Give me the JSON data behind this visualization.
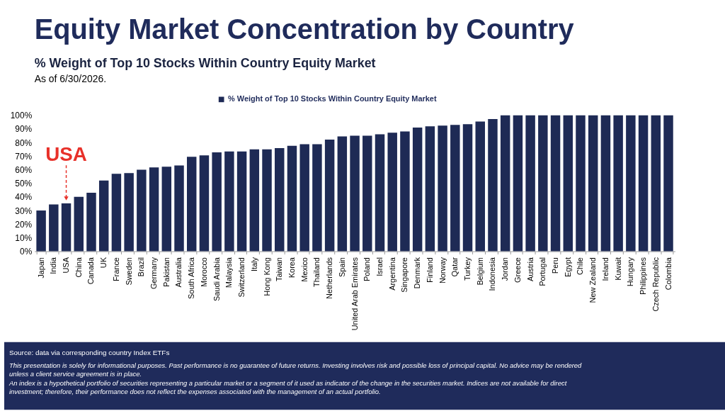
{
  "chart_data": {
    "type": "bar",
    "title": "Equity Market Concentration by Country",
    "subtitle": "% Weight of Top 10 Stocks Within Country Equity Market",
    "categories": [
      "Japan",
      "India",
      "USA",
      "China",
      "Canada",
      "UK",
      "France",
      "Sweden",
      "Brazil",
      "Germany",
      "Pakistan",
      "Australia",
      "South Africa",
      "Morocco",
      "Saudi Arabia",
      "Malaysia",
      "Switzerland",
      "Italy",
      "Hong Kong",
      "Taiwan",
      "Korea",
      "Mexico",
      "Thailand",
      "Netherlands",
      "Spain",
      "United Arab Emirates",
      "Poland",
      "Israel",
      "Argentina",
      "Singapore",
      "Denmark",
      "Finland",
      "Norway",
      "Qatar",
      "Turkey",
      "Belgium",
      "Indonesia",
      "Jordan",
      "Greece",
      "Austria",
      "Portugal",
      "Peru",
      "Egypt",
      "Chile",
      "New Zealand",
      "Ireland",
      "Kuwait",
      "Hungary",
      "Philippines",
      "Czech Republic",
      "Colombia"
    ],
    "series": [
      {
        "name": "% Weight of Top 10 Stocks Within Country Equity Market",
        "color": "#1e2a55",
        "values": [
          30,
          34.5,
          35.3,
          40,
          43,
          52,
          57,
          57.5,
          60,
          61.7,
          62.2,
          63.1,
          69.5,
          70.5,
          72.8,
          73.4,
          73.4,
          75,
          75,
          75.9,
          77.6,
          78.8,
          78.8,
          82.2,
          84.5,
          85,
          85,
          86,
          87.2,
          88.1,
          91,
          91.9,
          92.4,
          92.9,
          93.5,
          95.5,
          97.2,
          100,
          100,
          100,
          100,
          100,
          100,
          100,
          100,
          100,
          100,
          100,
          100,
          100,
          100
        ]
      }
    ],
    "ylim": [
      0,
      100
    ],
    "yticks": [
      {
        "value": 0,
        "label": "0%"
      },
      {
        "value": 10,
        "label": "10%"
      },
      {
        "value": 20,
        "label": "20%"
      },
      {
        "value": 30,
        "label": "30%"
      },
      {
        "value": 40,
        "label": "40%"
      },
      {
        "value": 50,
        "label": "50%"
      },
      {
        "value": 60,
        "label": "60%"
      },
      {
        "value": 70,
        "label": "70%"
      },
      {
        "value": 80,
        "label": "80%"
      },
      {
        "value": 90,
        "label": "90%"
      },
      {
        "value": 100,
        "label": "100%"
      }
    ],
    "legend": "top",
    "annotations": [
      "As of 6/30/2026.",
      {
        "text": "USA",
        "x": "USA",
        "y": 35.3
      },
      "Source: data via corresponding country Index ETFs",
      "This presentation is solely for informational purposes. Past performance is no guarantee of future returns. Investing involves risk and possible loss of principal capital. No advice may be rendered unless a client service agreement is in place.",
      "An index is a hypothetical portfolio of securities representing a particular market or a segment of it used as indicator of the change in the securities market. Indices are not available for direct investment; therefore, their performance does not reflect the expenses associated with the management of an actual portfolio."
    ]
  }
}
